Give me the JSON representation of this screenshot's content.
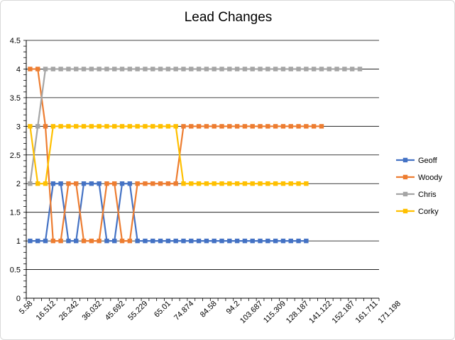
{
  "chart_data": {
    "type": "line",
    "title": "Lead Changes",
    "xlabel": "",
    "ylabel": "",
    "ylim": [
      0,
      4.5
    ],
    "y_ticks": [
      0,
      0.5,
      1,
      1.5,
      2,
      2.5,
      3,
      3.5,
      4,
      4.5
    ],
    "grid": true,
    "legend_position": "right",
    "x_tick_labels": [
      "5.58",
      "16.512",
      "26.242",
      "36.032",
      "45.692",
      "55.229",
      "65.01",
      "74.874",
      "84.58",
      "94.2",
      "103.687",
      "115.309",
      "128.187",
      "141.122",
      "152.187",
      "161.711",
      "171.198"
    ],
    "series": [
      {
        "name": "Geoff",
        "color": "#4472C4",
        "values": [
          1,
          1,
          1,
          2,
          2,
          1,
          1,
          2,
          2,
          2,
          1,
          1,
          2,
          2,
          1,
          1,
          1,
          1,
          1,
          1,
          1,
          1,
          1,
          1,
          1,
          1,
          1,
          1,
          1,
          1,
          1,
          1,
          1,
          1,
          1,
          1,
          1
        ]
      },
      {
        "name": "Woody",
        "color": "#ED7D31",
        "values": [
          4,
          4,
          3,
          1,
          1,
          2,
          2,
          1,
          1,
          1,
          2,
          2,
          1,
          1,
          2,
          2,
          2,
          2,
          2,
          2,
          3,
          3,
          3,
          3,
          3,
          3,
          3,
          3,
          3,
          3,
          3,
          3,
          3,
          3,
          3,
          3,
          3,
          3,
          3
        ]
      },
      {
        "name": "Chris",
        "color": "#A5A5A5",
        "values": [
          2,
          3,
          4,
          4,
          4,
          4,
          4,
          4,
          4,
          4,
          4,
          4,
          4,
          4,
          4,
          4,
          4,
          4,
          4,
          4,
          4,
          4,
          4,
          4,
          4,
          4,
          4,
          4,
          4,
          4,
          4,
          4,
          4,
          4,
          4,
          4,
          4,
          4,
          4,
          4,
          4,
          4,
          4,
          4
        ]
      },
      {
        "name": "Corky",
        "color": "#FFC000",
        "values": [
          3,
          2,
          2,
          3,
          3,
          3,
          3,
          3,
          3,
          3,
          3,
          3,
          3,
          3,
          3,
          3,
          3,
          3,
          3,
          3,
          2,
          2,
          2,
          2,
          2,
          2,
          2,
          2,
          2,
          2,
          2,
          2,
          2,
          2,
          2,
          2,
          2
        ]
      }
    ]
  }
}
